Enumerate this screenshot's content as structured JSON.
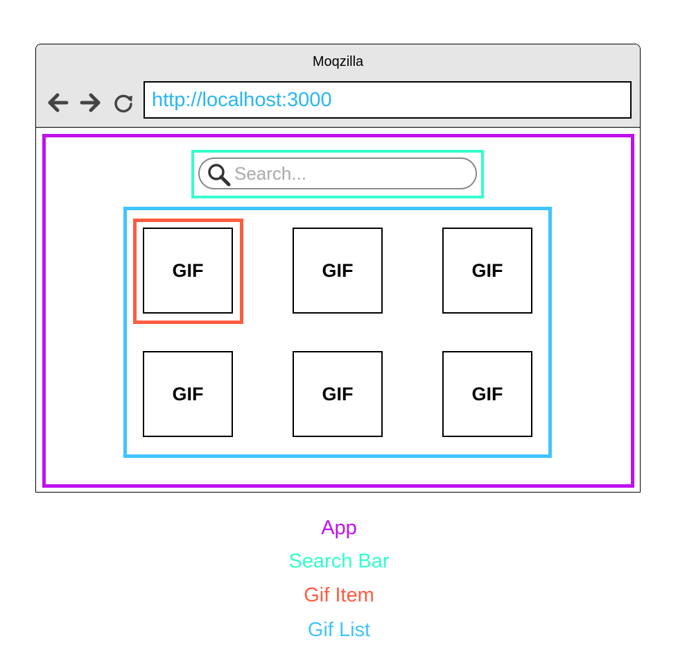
{
  "browser": {
    "title": "Moqzilla",
    "url": "http://localhost:3000",
    "nav_icons": [
      "arrow-left-icon",
      "arrow-right-icon",
      "reload-icon"
    ]
  },
  "search": {
    "placeholder": "Search...",
    "icon": "search-icon"
  },
  "gif_list": {
    "items": [
      "GIF",
      "GIF",
      "GIF",
      "GIF",
      "GIF",
      "GIF"
    ]
  },
  "legend": [
    {
      "label": "App",
      "color": "#bf10f0"
    },
    {
      "label": "Search Bar",
      "color": "#33ffcc"
    },
    {
      "label": "Gif Item",
      "color": "#ff5c40"
    },
    {
      "label": "Gif List",
      "color": "#40c4ff"
    }
  ],
  "colors": {
    "app": "#bf10f0",
    "search_bar": "#33ffcc",
    "gif_item": "#ff5c40",
    "gif_list": "#40c4ff",
    "url_text": "#29b6f6"
  }
}
